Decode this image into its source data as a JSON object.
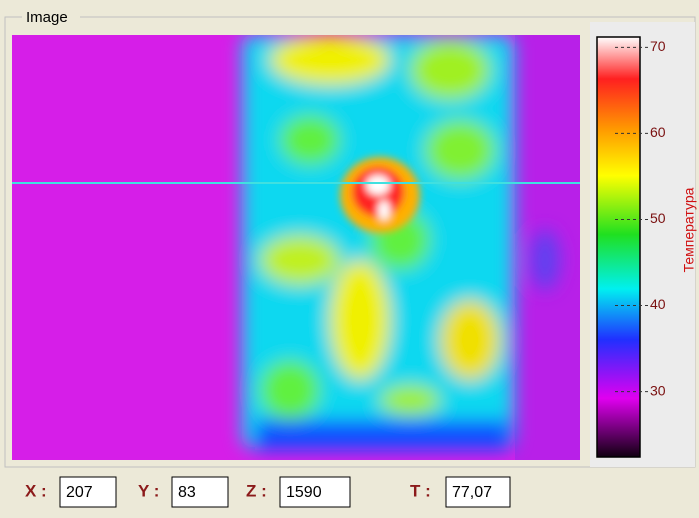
{
  "panel": {
    "title": "Image"
  },
  "colorbar": {
    "lim": [
      22.4,
      71.2
    ],
    "ticks": [
      30,
      40,
      50,
      60,
      70
    ],
    "label": "Температура"
  },
  "fields": [
    {
      "label": "X :",
      "value": 207
    },
    {
      "label": "Y :",
      "value": 83
    },
    {
      "label": "Z :",
      "value": 1590
    },
    {
      "label": "T :",
      "value": "77,07"
    }
  ]
}
